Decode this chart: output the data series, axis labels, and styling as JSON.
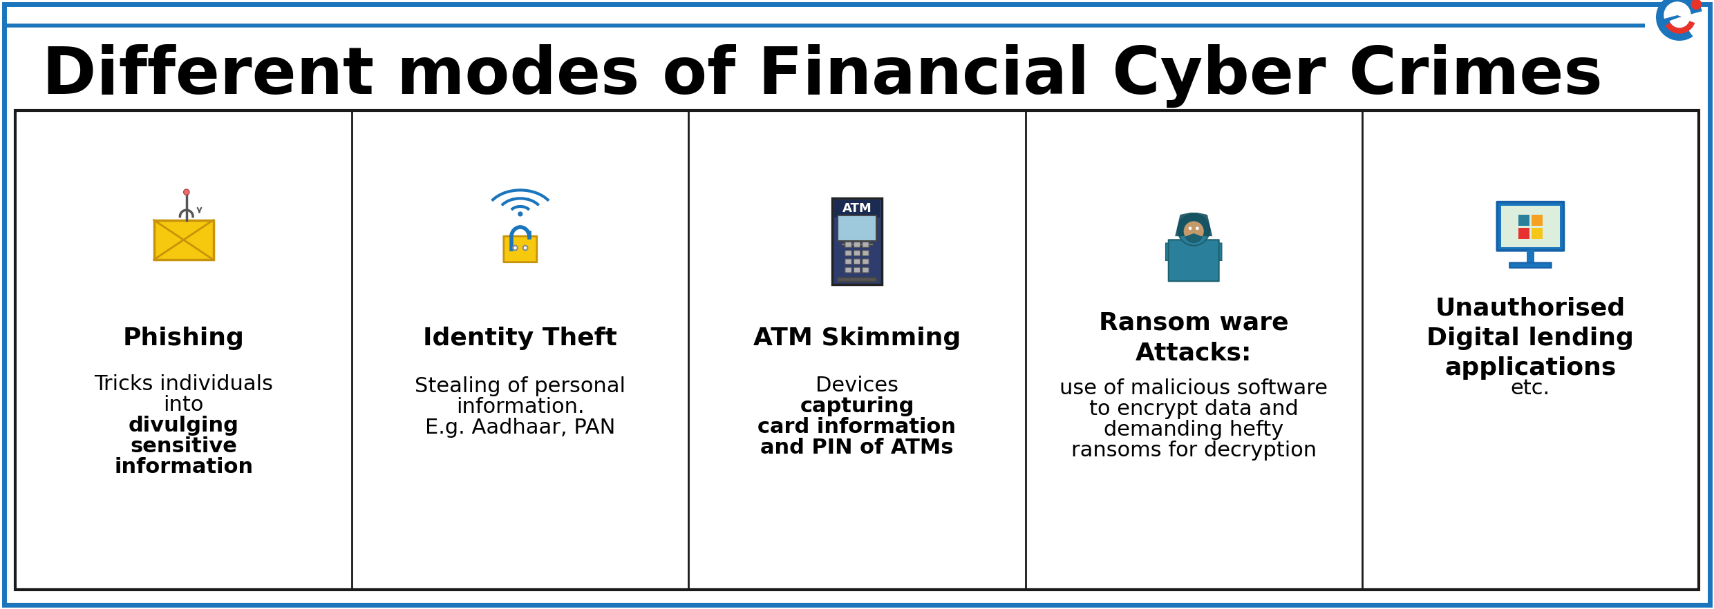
{
  "title": "Different modes of Financial Cyber Crimes",
  "title_fontsize": 68,
  "bg_color": "#ffffff",
  "border_color_outer": "#1a75bc",
  "border_color_inner": "#1a1a1a",
  "text_color": "#000000",
  "logo_blue": "#1a75bc",
  "logo_red": "#e8332a",
  "columns": [
    {
      "title": "Phishing",
      "icon_type": "phishing",
      "desc_lines": [
        {
          "text": "Tricks individuals",
          "bold": false
        },
        {
          "text": "into",
          "bold": false
        },
        {
          "text": "divulging",
          "bold": true
        },
        {
          "text": "sensitive",
          "bold": true
        },
        {
          "text": "information",
          "bold": true
        }
      ]
    },
    {
      "title": "Identity Theft",
      "icon_type": "identity_theft",
      "desc_lines": [
        {
          "text": "Stealing of personal",
          "bold": false
        },
        {
          "text": "information.",
          "bold": false
        },
        {
          "text": "E.g. Aadhaar, PAN",
          "bold": false
        }
      ]
    },
    {
      "title": "ATM Skimming",
      "icon_type": "atm",
      "desc_lines": [
        {
          "text": "Devices",
          "bold": false
        },
        {
          "text": "capturing",
          "bold": true
        },
        {
          "text": "card information",
          "bold": true
        },
        {
          "text": "and PIN of ATMs",
          "bold": true
        }
      ]
    },
    {
      "title": "Ransom ware\nAttacks:",
      "icon_type": "ransomware",
      "desc_lines": [
        {
          "text": "use of malicious software",
          "bold": false
        },
        {
          "text": "to encrypt data and",
          "bold": false
        },
        {
          "text": "demanding hefty",
          "bold": "mixed_end"
        },
        {
          "text": "ransoms for decryption",
          "bold": "mixed_start"
        }
      ]
    },
    {
      "title": "Unauthorised\nDigital lending\napplications",
      "icon_type": "digital_lending",
      "desc_lines": [
        {
          "text": "etc.",
          "bold": false
        }
      ]
    }
  ]
}
